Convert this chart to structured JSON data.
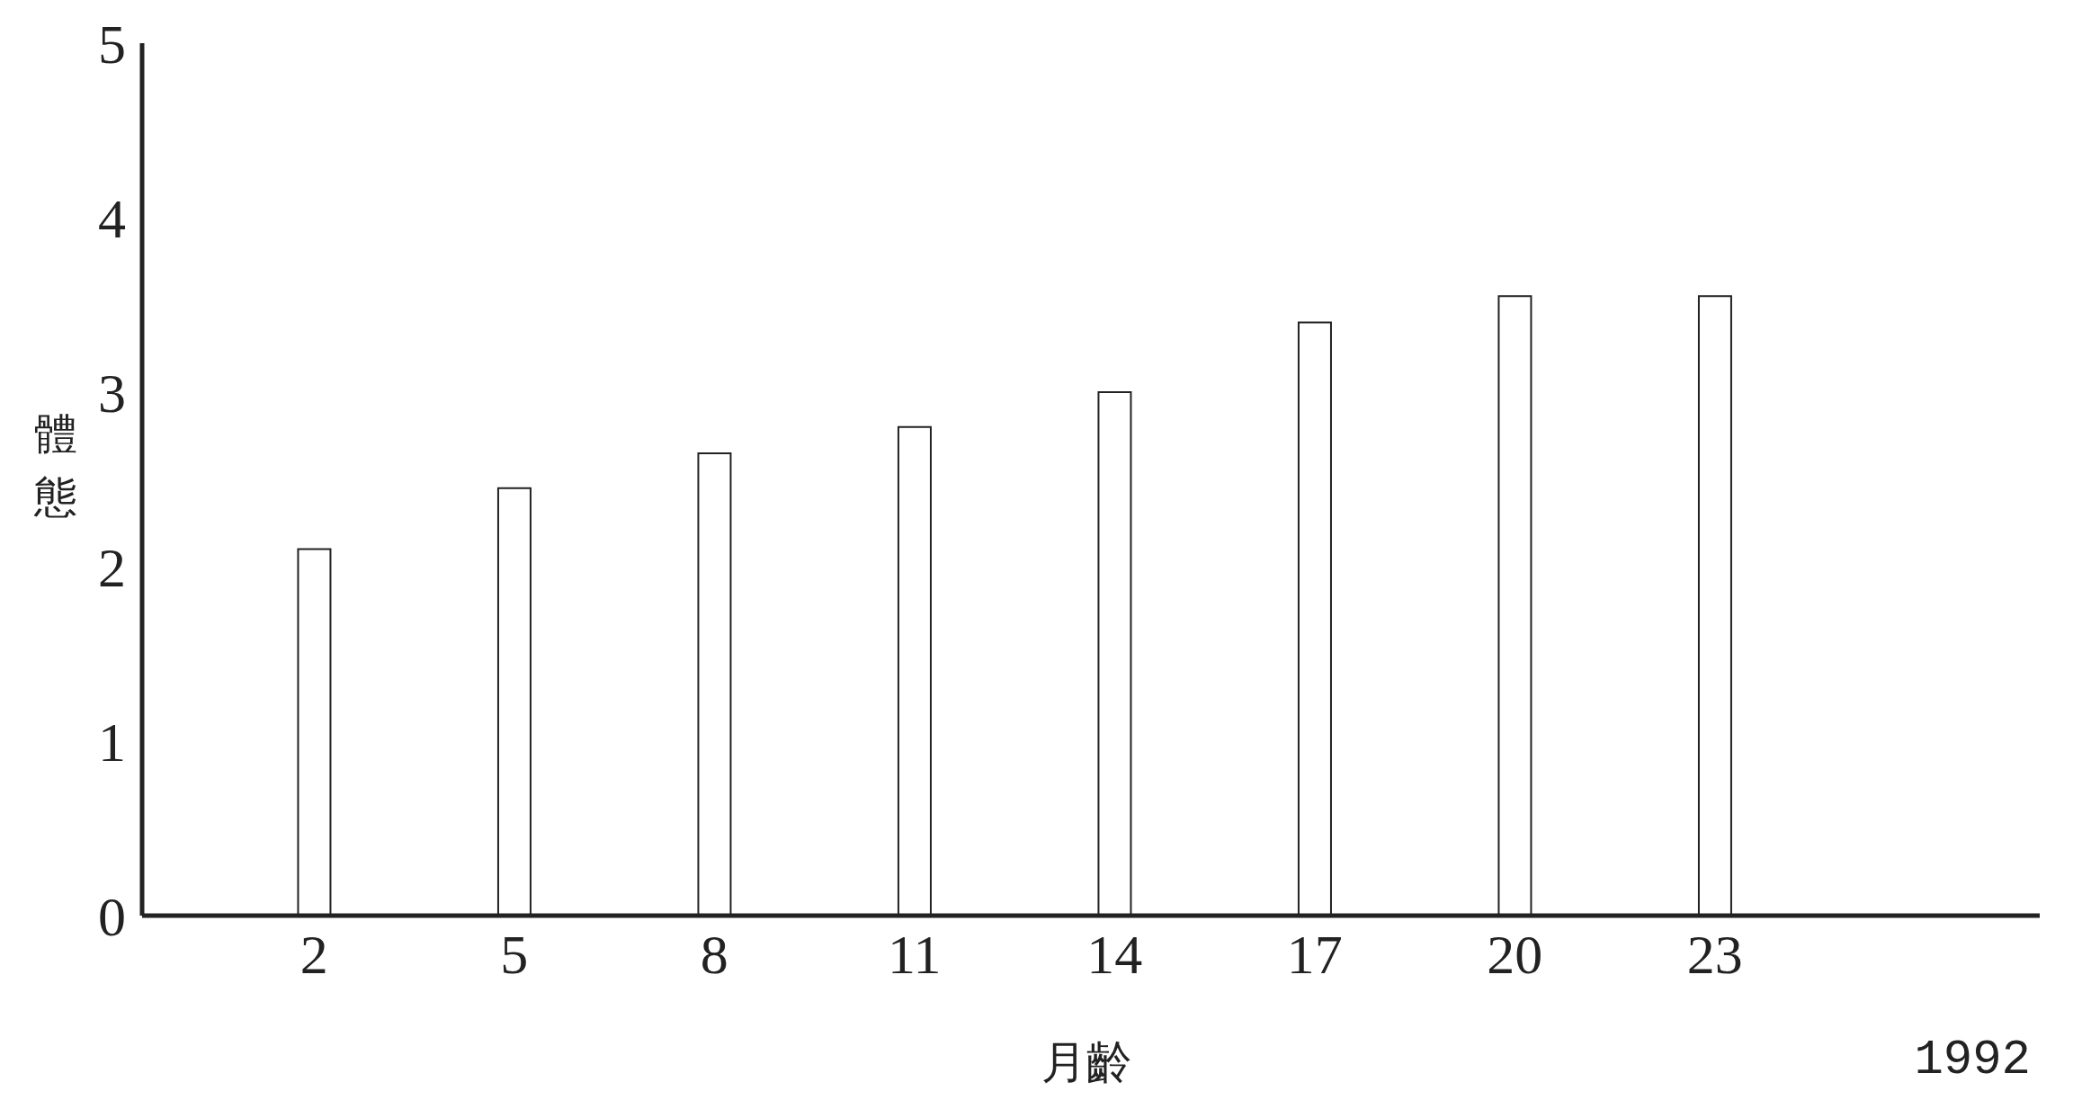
{
  "chart_data": {
    "type": "bar",
    "xlabel": "月齡",
    "ylabel": "體態",
    "annotations": [
      "1992"
    ],
    "categories": [
      "2",
      "5",
      "8",
      "11",
      "14",
      "17",
      "20",
      "23"
    ],
    "values": [
      2.1,
      2.45,
      2.65,
      2.8,
      3.0,
      3.4,
      3.55,
      3.55
    ],
    "color": "#ffffff",
    "ylim": [
      0,
      5
    ],
    "yticks": [
      0,
      1,
      2,
      3,
      4,
      5
    ],
    "grid": false
  }
}
